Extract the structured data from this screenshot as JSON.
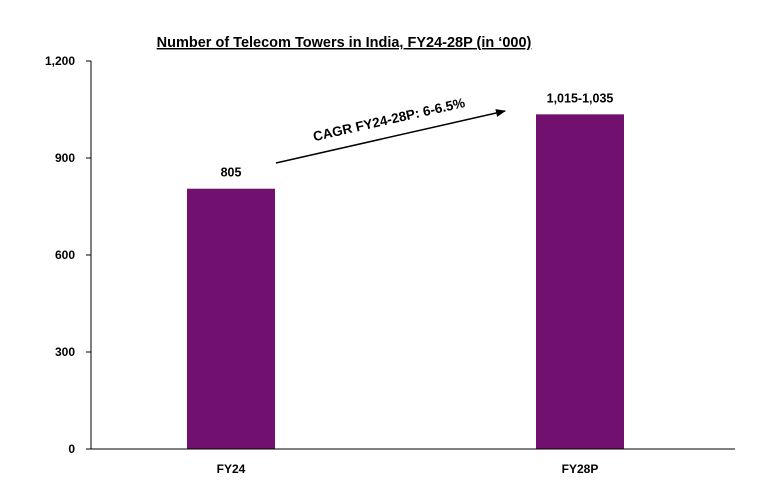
{
  "chart_data": {
    "type": "bar",
    "title": "Number of Telecom Towers in India, FY24-28P (in ‘000)",
    "categories": [
      "FY24",
      "FY28P"
    ],
    "values": [
      805,
      1035
    ],
    "value_ranges": [
      [
        805,
        805
      ],
      [
        1015,
        1035
      ]
    ],
    "data_labels": [
      "805",
      "1,015-1,035"
    ],
    "y_ticks": [
      0,
      300,
      600,
      900,
      1200
    ],
    "y_tick_labels": [
      "0",
      "300",
      "600",
      "900",
      "1,200"
    ],
    "ylim": [
      0,
      1200
    ],
    "xlabel": "",
    "ylabel": "",
    "grid": false,
    "legend": "none",
    "bar_color": "#721070",
    "axis_color": "#000000",
    "annotation": {
      "text": "CAGR FY24-28P: 6-6.5%",
      "from_category": "FY24",
      "to_category": "FY28P"
    }
  }
}
